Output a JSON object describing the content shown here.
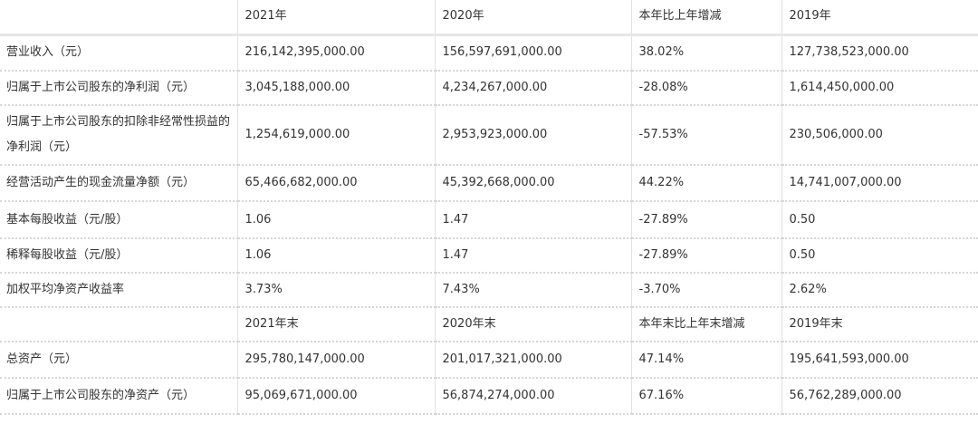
{
  "header": [
    "",
    "2021年",
    "2020年",
    "本年比上年增减",
    "2019年"
  ],
  "rows": [
    [
      "营业收入（元）",
      "216,142,395,000.00",
      "156,597,691,000.00",
      "38.02%",
      "127,738,523,000.00"
    ],
    [
      "归属于上市公司股东的净利润（元）",
      "3,045,188,000.00",
      "4,234,267,000.00",
      "-28.08%",
      "1,614,450,000.00"
    ],
    [
      "归属于上市公司股东的扣除非经常性损益的净利润（元）",
      "1,254,619,000.00",
      "2,953,923,000.00",
      "-57.53%",
      "230,506,000.00"
    ],
    [
      "经营活动产生的现金流量净额（元）",
      "65,466,682,000.00",
      "45,392,668,000.00",
      "44.22%",
      "14,741,007,000.00"
    ],
    [
      "基本每股收益（元/股）",
      "1.06",
      "1.47",
      "-27.89%",
      "0.50"
    ],
    [
      "稀释每股收益（元/股）",
      "1.06",
      "1.47",
      "-27.89%",
      "0.50"
    ],
    [
      "加权平均净资产收益率",
      "3.73%",
      "7.43%",
      "-3.70%",
      "2.62%"
    ],
    [
      "",
      "2021年末",
      "2020年末",
      "本年末比上年末增减",
      "2019年末"
    ],
    [
      "总资产（元）",
      "295,780,147,000.00",
      "201,017,321,000.00",
      "47.14%",
      "195,641,593,000.00"
    ],
    [
      "归属于上市公司股东的净资产（元）",
      "95,069,671,000.00",
      "56,874,274,000.00",
      "67.16%",
      "56,762,289,000.00"
    ]
  ]
}
